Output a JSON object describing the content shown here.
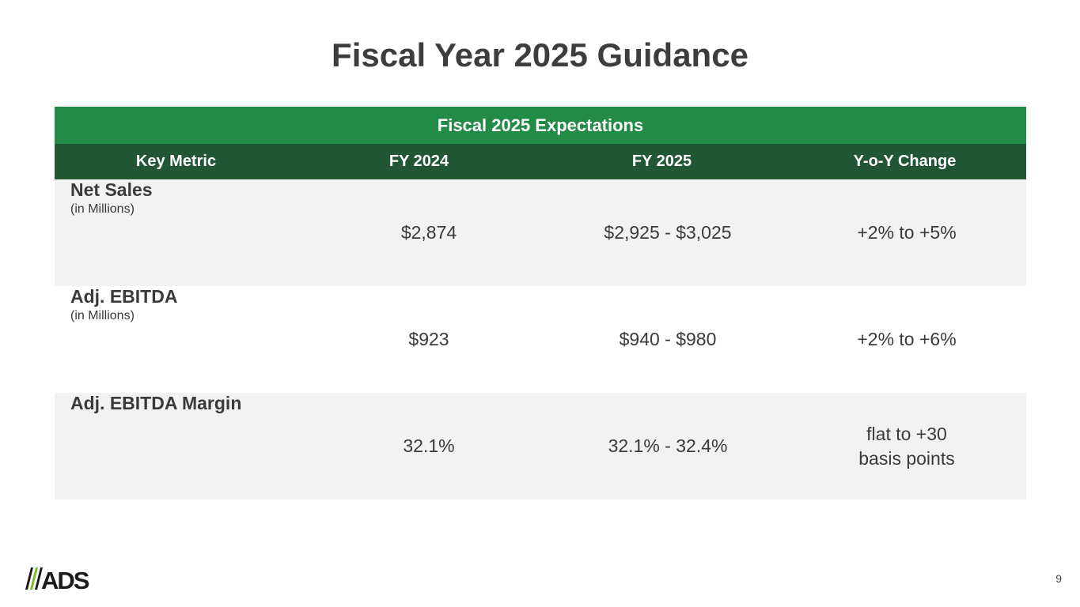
{
  "title": "Fiscal Year 2025 Guidance",
  "table": {
    "band": "Fiscal 2025 Expectations",
    "headers": [
      "Key Metric",
      "FY 2024",
      "FY 2025",
      "Y-o-Y Change"
    ],
    "rows": [
      {
        "metric": "Net Sales",
        "sub": "(in Millions)",
        "fy2024": "$2,874",
        "fy2025": "$2,925 - $3,025",
        "change": "+2% to +5%"
      },
      {
        "metric": "Adj. EBITDA",
        "sub": "(in Millions)",
        "fy2024": "$923",
        "fy2025": "$940 - $980",
        "change": "+2% to +6%"
      },
      {
        "metric": "Adj. EBITDA Margin",
        "fy2024": "32.1%",
        "fy2025": "32.1% - 32.4%",
        "change_line1": "flat to +30",
        "change_line2": "basis points"
      }
    ]
  },
  "logo": "ADS",
  "page_number": "9",
  "colors": {
    "band": "#228B48",
    "header": "#215732",
    "row_alt": "#f2f2f2",
    "logo_accent": "#78BE20"
  }
}
